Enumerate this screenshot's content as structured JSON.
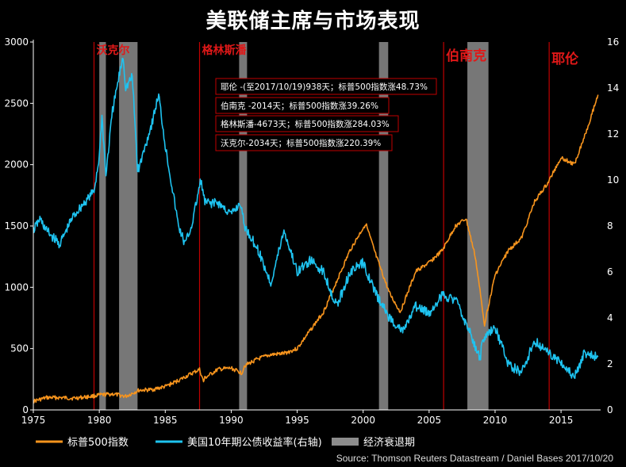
{
  "title": "美联储主席与市场表现",
  "source": "Source: Thomson Reuters Datastream / Daniel Bases 2017/10/20",
  "legend": [
    {
      "label": "标普500指数",
      "color": "#f7941d",
      "kind": "line"
    },
    {
      "label": "美国10年期公债收益率(右轴)",
      "color": "#1ec3f0",
      "kind": "line"
    },
    {
      "label": "经济衰退期",
      "color": "#8c8c8c",
      "kind": "box"
    }
  ],
  "annotations": [
    "耶伦 -(至2017/10/19)938天；标普500指数涨48.73%",
    "伯南克 -2014天；标普500指数涨39.26%",
    "格林斯潘-4673天；标普500指数涨284.03%",
    "沃克尔-2034天；标普500指数涨220.39%"
  ],
  "chart_data": {
    "type": "line",
    "x_ticks": [
      "1975",
      "1980",
      "1985",
      "1990",
      "1995",
      "2000",
      "2005",
      "2010",
      "2015"
    ],
    "y_left_ticks": [
      "0",
      "500",
      "1000",
      "1500",
      "2000",
      "2500",
      "3000"
    ],
    "y_right_ticks": [
      "0",
      "2",
      "4",
      "6",
      "8",
      "10",
      "12",
      "14",
      "16"
    ],
    "xlim": [
      1975,
      2018
    ],
    "ylim_left": [
      0,
      3000
    ],
    "ylim_right": [
      0,
      16
    ],
    "grid": false,
    "legend_position": "bottom",
    "colors": {
      "sp500": "#f7941d",
      "yield": "#1ec3f0",
      "recession": "#8c8c8c",
      "chair": "#c00000"
    },
    "chairs": [
      {
        "name": "沃克尔",
        "start": 1979.6
      },
      {
        "name": "格林斯潘",
        "start": 1987.6
      },
      {
        "name": "伯南克",
        "start": 2006.1
      },
      {
        "name": "耶伦",
        "start": 2014.1
      }
    ],
    "recessions": [
      [
        1980.0,
        1980.5
      ],
      [
        1981.5,
        1982.9
      ],
      [
        1990.6,
        1991.2
      ],
      [
        2001.2,
        2001.9
      ],
      [
        2007.9,
        2009.5
      ]
    ],
    "series": [
      {
        "name": "标普500指数",
        "axis": "left",
        "points": [
          [
            1975,
            70
          ],
          [
            1976,
            100
          ],
          [
            1977,
            100
          ],
          [
            1978,
            95
          ],
          [
            1979,
            105
          ],
          [
            1980,
            120
          ],
          [
            1981,
            130
          ],
          [
            1982,
            110
          ],
          [
            1983,
            160
          ],
          [
            1984,
            165
          ],
          [
            1985,
            190
          ],
          [
            1986,
            240
          ],
          [
            1987.6,
            330
          ],
          [
            1987.9,
            230
          ],
          [
            1988,
            260
          ],
          [
            1989,
            330
          ],
          [
            1990,
            340
          ],
          [
            1990.8,
            300
          ],
          [
            1991,
            360
          ],
          [
            1992,
            415
          ],
          [
            1993,
            450
          ],
          [
            1994,
            460
          ],
          [
            1995,
            500
          ],
          [
            1996,
            650
          ],
          [
            1997,
            800
          ],
          [
            1998,
            1050
          ],
          [
            1999,
            1300
          ],
          [
            2000.2,
            1520
          ],
          [
            2001,
            1250
          ],
          [
            2002,
            950
          ],
          [
            2002.8,
            800
          ],
          [
            2003,
            850
          ],
          [
            2004,
            1130
          ],
          [
            2005,
            1200
          ],
          [
            2006,
            1300
          ],
          [
            2007,
            1500
          ],
          [
            2007.8,
            1560
          ],
          [
            2008.5,
            1250
          ],
          [
            2009.2,
            700
          ],
          [
            2010,
            1100
          ],
          [
            2011,
            1300
          ],
          [
            2012,
            1400
          ],
          [
            2013,
            1700
          ],
          [
            2014,
            1850
          ],
          [
            2015,
            2060
          ],
          [
            2016,
            2000
          ],
          [
            2016.5,
            2150
          ],
          [
            2017,
            2300
          ],
          [
            2017.8,
            2570
          ]
        ]
      },
      {
        "name": "美国10年期公债收益率(右轴)",
        "axis": "right",
        "points": [
          [
            1975,
            7.8
          ],
          [
            1975.5,
            8.3
          ],
          [
            1976,
            7.8
          ],
          [
            1977,
            7.2
          ],
          [
            1978,
            8.4
          ],
          [
            1979,
            9.1
          ],
          [
            1979.6,
            9.5
          ],
          [
            1980,
            11
          ],
          [
            1980.2,
            12.8
          ],
          [
            1980.5,
            10.2
          ],
          [
            1981,
            13
          ],
          [
            1981.8,
            15.4
          ],
          [
            1982,
            14
          ],
          [
            1982.5,
            14.5
          ],
          [
            1982.9,
            10.5
          ],
          [
            1983,
            10.5
          ],
          [
            1984,
            12.5
          ],
          [
            1984.5,
            13.7
          ],
          [
            1985,
            11.5
          ],
          [
            1986,
            8
          ],
          [
            1986.5,
            7.2
          ],
          [
            1987,
            8
          ],
          [
            1987.7,
            10
          ],
          [
            1988,
            9
          ],
          [
            1989,
            9
          ],
          [
            1990,
            8.5
          ],
          [
            1990.7,
            9
          ],
          [
            1991,
            8
          ],
          [
            1992,
            7
          ],
          [
            1993,
            5.5
          ],
          [
            1994,
            7.8
          ],
          [
            1995,
            6
          ],
          [
            1996,
            6.5
          ],
          [
            1997,
            6
          ],
          [
            1998,
            4.5
          ],
          [
            1999,
            6
          ],
          [
            2000,
            6.4
          ],
          [
            2001,
            5
          ],
          [
            2002,
            4
          ],
          [
            2003,
            3.4
          ],
          [
            2004,
            4.5
          ],
          [
            2005,
            4.2
          ],
          [
            2006,
            5
          ],
          [
            2007,
            4.8
          ],
          [
            2008,
            3.5
          ],
          [
            2008.9,
            2.2
          ],
          [
            2009,
            3
          ],
          [
            2010,
            3.6
          ],
          [
            2011,
            2
          ],
          [
            2012,
            1.6
          ],
          [
            2013,
            3
          ],
          [
            2014,
            2.5
          ],
          [
            2015,
            2.1
          ],
          [
            2016,
            1.4
          ],
          [
            2016.8,
            2.5
          ],
          [
            2017,
            2.4
          ],
          [
            2017.8,
            2.3
          ]
        ]
      }
    ]
  }
}
